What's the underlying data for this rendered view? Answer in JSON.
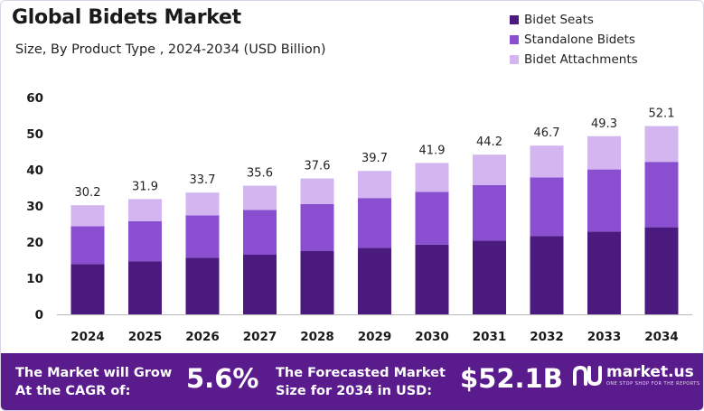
{
  "header": {
    "title": "Global Bidets Market",
    "subtitle": "Size, By Product Type , 2024-2034 (USD Billion)"
  },
  "legend": [
    {
      "label": "Bidet Seats",
      "color": "#4b1a7f"
    },
    {
      "label": "Standalone Bidets",
      "color": "#8a4fd0"
    },
    {
      "label": "Bidet Attachments",
      "color": "#d3b5ef"
    }
  ],
  "chart_data": {
    "type": "bar",
    "stacked": true,
    "categories": [
      "2024",
      "2025",
      "2026",
      "2027",
      "2028",
      "2029",
      "2030",
      "2031",
      "2032",
      "2033",
      "2034"
    ],
    "series": [
      {
        "name": "Bidet Seats",
        "values": [
          13.9,
          14.7,
          15.7,
          16.5,
          17.5,
          18.4,
          19.3,
          20.4,
          21.7,
          22.9,
          24.1
        ],
        "color": "#4b1a7f"
      },
      {
        "name": "Standalone Bidets",
        "values": [
          10.5,
          11.1,
          11.7,
          12.4,
          13.0,
          13.8,
          14.6,
          15.4,
          16.2,
          17.2,
          18.1
        ],
        "color": "#8a4fd0"
      },
      {
        "name": "Bidet Attachments",
        "values": [
          5.8,
          6.1,
          6.3,
          6.7,
          7.1,
          7.5,
          8.0,
          8.4,
          8.8,
          9.2,
          9.9
        ],
        "color": "#d3b5ef"
      }
    ],
    "totals": [
      "30.2",
      "31.9",
      "33.7",
      "35.6",
      "37.6",
      "39.7",
      "41.9",
      "44.2",
      "46.7",
      "49.3",
      "52.1"
    ],
    "ylim": [
      0,
      60
    ],
    "yticks": [
      "0",
      "10",
      "20",
      "30",
      "40",
      "50",
      "60"
    ],
    "grid": false,
    "legend_position": "top-right"
  },
  "footer": {
    "cagr_label_line1": "The Market will Grow",
    "cagr_label_line2": "At the CAGR of:",
    "cagr_value": "5.6%",
    "forecast_label_line1": "The Forecasted Market",
    "forecast_label_line2": "Size for 2034 in USD:",
    "forecast_value": "$52.1B",
    "brand_name": "market.us",
    "brand_tagline": "ONE STOP SHOP FOR THE REPORTS"
  }
}
